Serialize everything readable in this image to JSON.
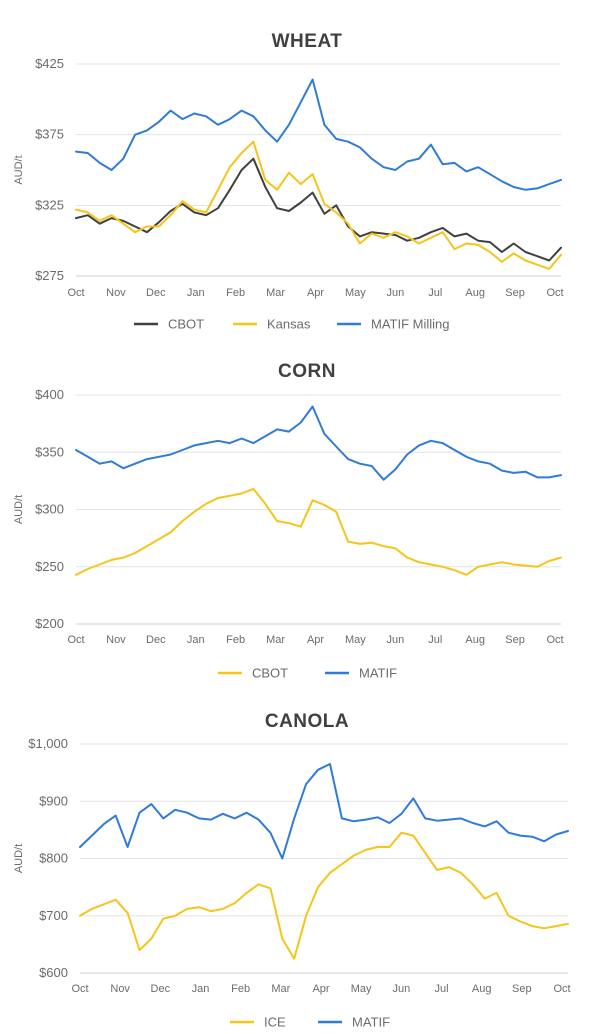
{
  "colors": {
    "cbot_black": "#404040",
    "yellow": "#f5c518",
    "blue": "#2f7bd8",
    "corn_cbot": "#f5c518"
  },
  "chart_data": [
    {
      "type": "line",
      "title": "WHEAT",
      "ylabel": "AUD/t",
      "ylim": [
        275,
        425
      ],
      "yticks": [
        275,
        325,
        375,
        425
      ],
      "yticklabels": [
        "$275",
        "$325",
        "$375",
        "$425"
      ],
      "xticklabels": [
        "Oct",
        "Nov",
        "Dec",
        "Jan",
        "Feb",
        "Mar",
        "Apr",
        "May",
        "Jun",
        "Jul",
        "Aug",
        "Sep",
        "Oct"
      ],
      "grid": true,
      "legend": "bottom",
      "series": [
        {
          "name": "CBOT",
          "color": "#404040",
          "values": [
            316,
            318,
            312,
            316,
            314,
            310,
            306,
            313,
            321,
            326,
            320,
            318,
            323,
            336,
            350,
            358,
            338,
            323,
            321,
            327,
            334,
            319,
            325,
            310,
            303,
            306,
            305,
            304,
            300,
            302,
            306,
            309,
            303,
            305,
            300,
            299,
            292,
            298,
            292,
            289,
            286,
            295
          ]
        },
        {
          "name": "Kansas",
          "color": "#f5c518",
          "values": [
            322,
            320,
            314,
            318,
            312,
            306,
            310,
            310,
            318,
            328,
            322,
            320,
            336,
            352,
            362,
            370,
            343,
            336,
            348,
            340,
            347,
            326,
            320,
            312,
            298,
            305,
            302,
            306,
            303,
            298,
            302,
            306,
            294,
            298,
            297,
            292,
            285,
            291,
            286,
            283,
            280,
            290
          ]
        },
        {
          "name": "MATIF Milling",
          "color": "#2f7bd8",
          "values": [
            363,
            362,
            355,
            350,
            358,
            375,
            378,
            384,
            392,
            386,
            390,
            388,
            382,
            386,
            392,
            388,
            378,
            370,
            382,
            398,
            414,
            382,
            372,
            370,
            366,
            358,
            352,
            350,
            356,
            358,
            368,
            354,
            355,
            349,
            352,
            347,
            342,
            338,
            336,
            337,
            340,
            343
          ]
        }
      ]
    },
    {
      "type": "line",
      "title": "CORN",
      "ylabel": "AUD/t",
      "ylim": [
        200,
        400
      ],
      "yticks": [
        200,
        250,
        300,
        350,
        400
      ],
      "yticklabels": [
        "$200",
        "$250",
        "$300",
        "$350",
        "$400"
      ],
      "xticklabels": [
        "Oct",
        "Nov",
        "Dec",
        "Jan",
        "Feb",
        "Mar",
        "Apr",
        "May",
        "Jun",
        "Jul",
        "Aug",
        "Sep",
        "Oct"
      ],
      "grid": true,
      "legend": "bottom",
      "series": [
        {
          "name": "CBOT",
          "color": "#f5c518",
          "values": [
            243,
            248,
            252,
            256,
            258,
            262,
            268,
            274,
            280,
            290,
            298,
            305,
            310,
            312,
            314,
            318,
            305,
            290,
            288,
            285,
            308,
            304,
            298,
            272,
            270,
            271,
            268,
            266,
            258,
            254,
            252,
            250,
            247,
            243,
            250,
            252,
            254,
            252,
            251,
            250,
            255,
            258
          ]
        },
        {
          "name": "MATIF",
          "color": "#2f7bd8",
          "values": [
            352,
            346,
            340,
            342,
            336,
            340,
            344,
            346,
            348,
            352,
            356,
            358,
            360,
            358,
            362,
            358,
            364,
            370,
            368,
            376,
            390,
            366,
            355,
            344,
            340,
            338,
            326,
            335,
            348,
            356,
            360,
            358,
            352,
            346,
            342,
            340,
            334,
            332,
            333,
            328,
            328,
            330
          ]
        }
      ]
    },
    {
      "type": "line",
      "title": "CANOLA",
      "ylabel": "AUD/t",
      "ylim": [
        600,
        1000
      ],
      "yticks": [
        600,
        700,
        800,
        900,
        1000
      ],
      "yticklabels": [
        "$600",
        "$700",
        "$800",
        "$900",
        "$1,000"
      ],
      "xticklabels": [
        "Oct",
        "Nov",
        "Dec",
        "Jan",
        "Feb",
        "Mar",
        "Apr",
        "May",
        "Jun",
        "Jul",
        "Aug",
        "Sep",
        "Oct"
      ],
      "grid": true,
      "legend": "bottom",
      "series": [
        {
          "name": "ICE",
          "color": "#f5c518",
          "values": [
            700,
            712,
            720,
            728,
            705,
            640,
            660,
            695,
            700,
            712,
            715,
            708,
            712,
            722,
            740,
            755,
            748,
            660,
            625,
            700,
            750,
            775,
            790,
            805,
            815,
            820,
            820,
            845,
            840,
            810,
            780,
            785,
            775,
            755,
            730,
            740,
            700,
            690,
            682,
            678,
            682,
            686
          ]
        },
        {
          "name": "MATIF",
          "color": "#2f7bd8",
          "values": [
            820,
            840,
            860,
            875,
            820,
            880,
            895,
            870,
            885,
            880,
            870,
            868,
            878,
            870,
            880,
            868,
            845,
            800,
            870,
            930,
            955,
            965,
            870,
            865,
            868,
            872,
            862,
            878,
            905,
            870,
            866,
            868,
            870,
            862,
            856,
            865,
            845,
            840,
            838,
            830,
            842,
            848
          ]
        }
      ]
    }
  ]
}
